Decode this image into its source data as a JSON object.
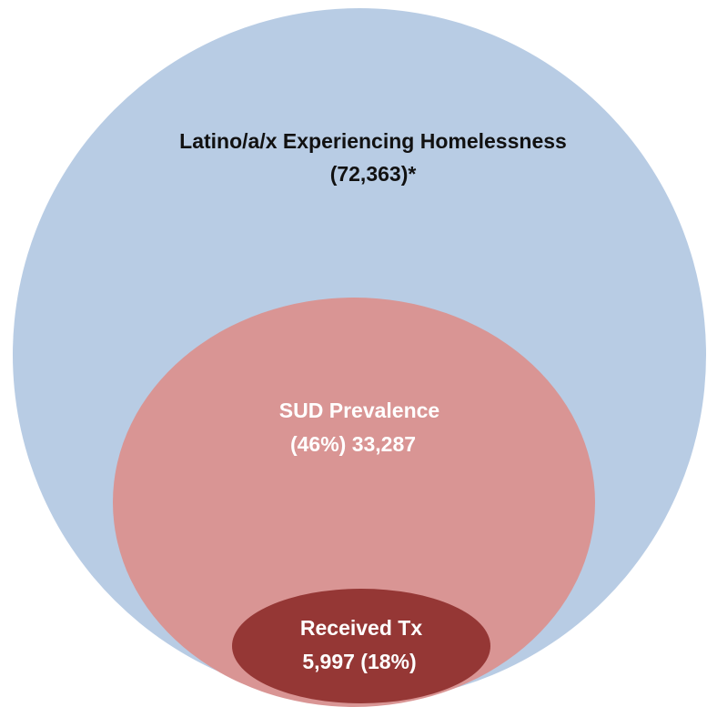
{
  "colors": {
    "outer_fill": "#b8cce4",
    "middle_fill": "#d99594",
    "inner_fill": "#953735",
    "outer_text": "#111111",
    "inner_text": "#ffffff"
  },
  "outer": {
    "line1": "Latino/a/x Experiencing Homelessness",
    "line2": "(72,363)*"
  },
  "middle": {
    "line1": "SUD Prevalence",
    "line2": "(46%) 33,287"
  },
  "inner": {
    "line1": "Received Tx",
    "line2": "5,997 (18%)"
  }
}
